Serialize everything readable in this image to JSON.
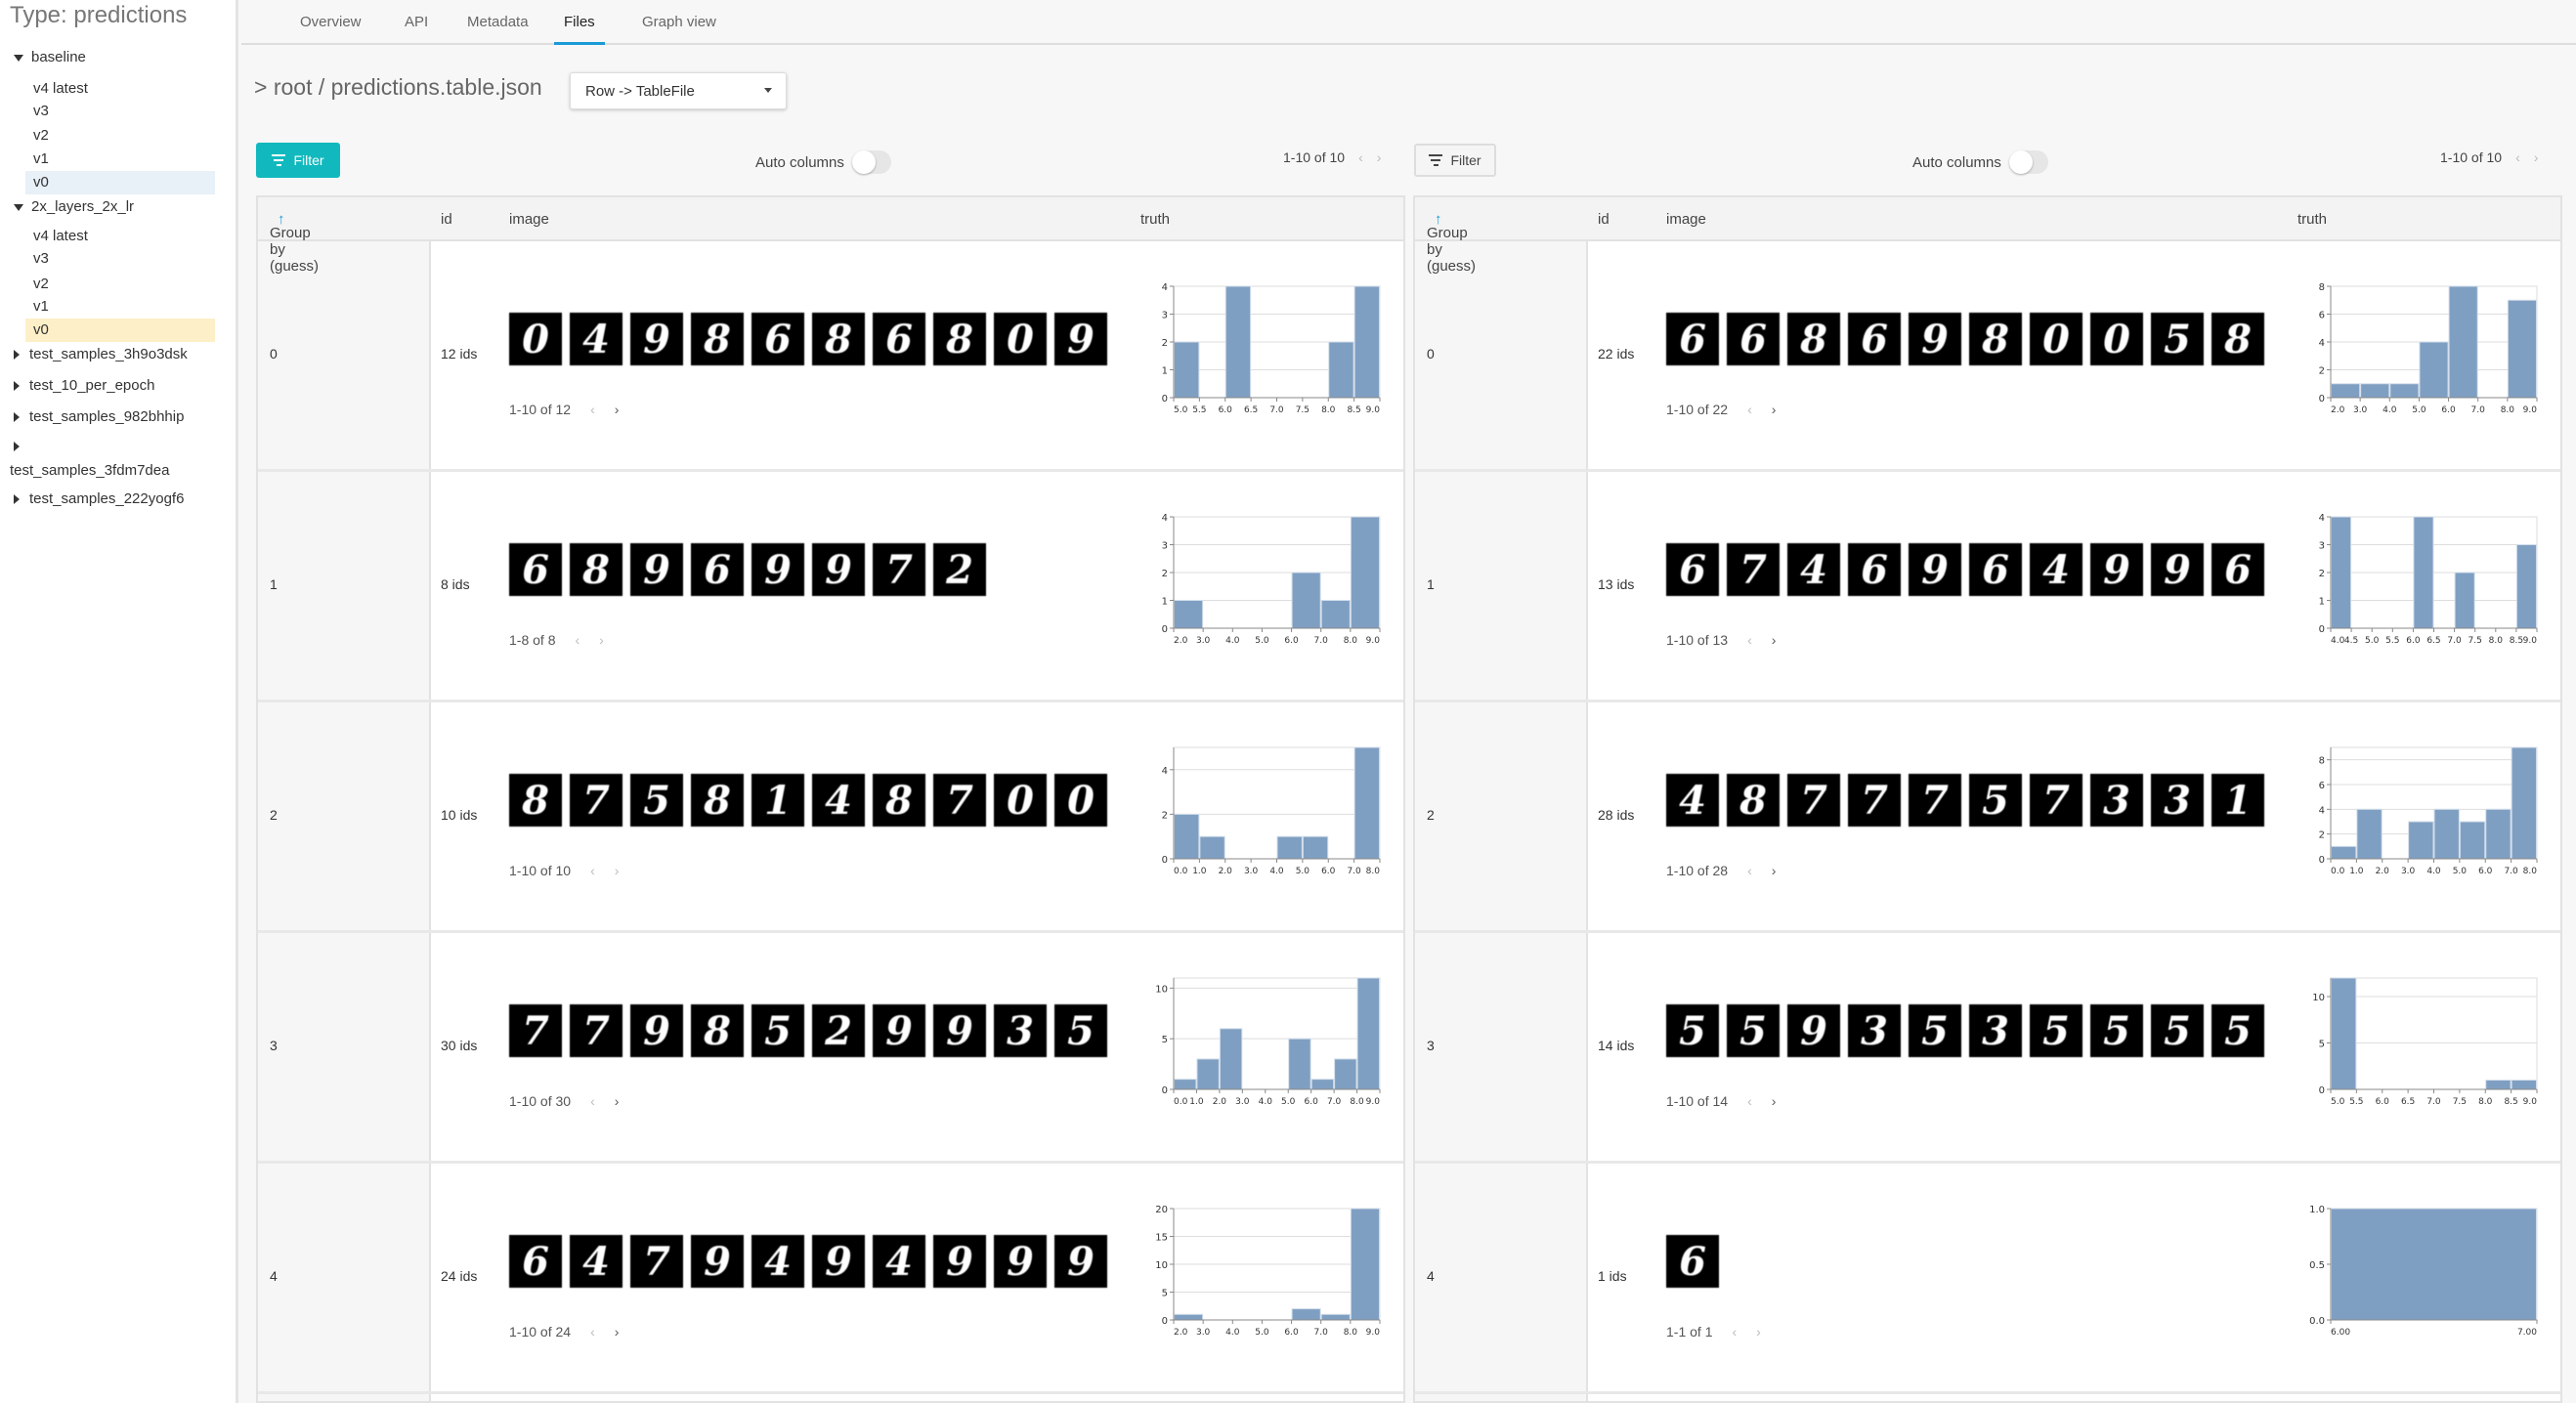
{
  "sidebar": {
    "title": "Type: predictions",
    "items": [
      {
        "label": "baseline",
        "kind": "group",
        "expanded": true
      },
      {
        "label": "v4 latest",
        "kind": "version"
      },
      {
        "label": "v3",
        "kind": "version"
      },
      {
        "label": "v2",
        "kind": "version"
      },
      {
        "label": "v1",
        "kind": "version"
      },
      {
        "label": "v0",
        "kind": "version",
        "highlight": "blue"
      },
      {
        "label": "2x_layers_2x_lr",
        "kind": "group",
        "expanded": true
      },
      {
        "label": "v4 latest",
        "kind": "version"
      },
      {
        "label": "v3",
        "kind": "version"
      },
      {
        "label": "v2",
        "kind": "version"
      },
      {
        "label": "v1",
        "kind": "version"
      },
      {
        "label": "v0",
        "kind": "version",
        "highlight": "yellow"
      },
      {
        "label": "test_samples_3h9o3dsk",
        "kind": "group"
      },
      {
        "label": "test_10_per_epoch",
        "kind": "group"
      },
      {
        "label": "test_samples_982bhhip",
        "kind": "group"
      },
      {
        "label": "",
        "kind": "group"
      },
      {
        "label": "test_samples_3fdm7dea",
        "kind": "wrapped"
      },
      {
        "label": "test_samples_222yogf6",
        "kind": "group"
      }
    ]
  },
  "tabs": [
    {
      "label": "Overview"
    },
    {
      "label": "API"
    },
    {
      "label": "Metadata"
    },
    {
      "label": "Files",
      "active": true
    },
    {
      "label": "Graph view"
    }
  ],
  "breadcrumb": "> root / predictions.table.json",
  "dropdown": {
    "selected": "Row -> TableFile"
  },
  "colors": {
    "accent": "#11b9be",
    "bar": "#7f9fc2",
    "active_tab": "#1a9bd7",
    "sort_arrow": "#1a9bd7"
  },
  "panels": [
    {
      "filter_label": "Filter",
      "auto_columns_label": "Auto columns",
      "auto_columns_on": false,
      "pager": "1-10 of 10",
      "columns": {
        "group": "Group by (guess)",
        "sort": "↑",
        "id": "id",
        "image": "image",
        "truth": "truth"
      },
      "rows": [
        {
          "group": "0",
          "ids": "12 ids",
          "pager": "1-10 of 12",
          "thumbnails": [
            "0",
            "4",
            "9",
            "8",
            "6",
            "8",
            "6",
            "8",
            "0",
            "9"
          ],
          "chart": {
            "type": "bar",
            "bins": [
              [
                5,
                5.5,
                2
              ],
              [
                6,
                6.5,
                4
              ],
              [
                8,
                8.5,
                2
              ],
              [
                8.5,
                9,
                4
              ]
            ],
            "xlim": [
              5,
              9
            ],
            "xticks": [
              "5.0",
              "5.5",
              "6.0",
              "6.5",
              "7.0",
              "7.5",
              "8.0",
              "8.5",
              "9.0"
            ],
            "xtick_vals": [
              5,
              5.5,
              6,
              6.5,
              7,
              7.5,
              8,
              8.5,
              9
            ],
            "ylim": [
              0,
              4
            ],
            "yticks": [
              0,
              1,
              2,
              3,
              4
            ]
          }
        },
        {
          "group": "1",
          "ids": "8 ids",
          "pager": "1-8 of 8",
          "thumbnails": [
            "6",
            "8",
            "9",
            "6",
            "9",
            "9",
            "7",
            "2"
          ],
          "chart": {
            "type": "bar",
            "bins": [
              [
                2,
                3,
                1
              ],
              [
                6,
                7,
                2
              ],
              [
                7,
                8,
                1
              ],
              [
                8,
                9,
                4
              ]
            ],
            "xlim": [
              2,
              9
            ],
            "xticks": [
              "2.0",
              "3.0",
              "4.0",
              "5.0",
              "6.0",
              "7.0",
              "8.0",
              "9.0"
            ],
            "xtick_vals": [
              2,
              3,
              4,
              5,
              6,
              7,
              8,
              9
            ],
            "ylim": [
              0,
              4
            ],
            "yticks": [
              0,
              1,
              2,
              3,
              4
            ]
          }
        },
        {
          "group": "2",
          "ids": "10 ids",
          "pager": "1-10 of 10",
          "thumbnails": [
            "8",
            "7",
            "5",
            "8",
            "1",
            "4",
            "8",
            "7",
            "0",
            "0"
          ],
          "chart": {
            "type": "bar",
            "bins": [
              [
                0,
                1,
                2
              ],
              [
                1,
                2,
                1
              ],
              [
                4,
                5,
                1
              ],
              [
                5,
                6,
                1
              ],
              [
                7,
                8,
                5
              ]
            ],
            "xlim": [
              0,
              8
            ],
            "xticks": [
              "0.0",
              "1.0",
              "2.0",
              "3.0",
              "4.0",
              "5.0",
              "6.0",
              "7.0",
              "8.0"
            ],
            "xtick_vals": [
              0,
              1,
              2,
              3,
              4,
              5,
              6,
              7,
              8
            ],
            "ylim": [
              0,
              5
            ],
            "yticks": [
              0,
              2,
              4
            ]
          }
        },
        {
          "group": "3",
          "ids": "30 ids",
          "pager": "1-10 of 30",
          "thumbnails": [
            "7",
            "7",
            "9",
            "8",
            "5",
            "2",
            "9",
            "9",
            "3",
            "5"
          ],
          "chart": {
            "type": "bar",
            "bins": [
              [
                0,
                1,
                1
              ],
              [
                1,
                2,
                3
              ],
              [
                2,
                3,
                6
              ],
              [
                5,
                6,
                5
              ],
              [
                6,
                7,
                1
              ],
              [
                7,
                8,
                3
              ],
              [
                8,
                9,
                11
              ]
            ],
            "xlim": [
              0,
              9
            ],
            "xticks": [
              "0.0",
              "1.0",
              "2.0",
              "3.0",
              "4.0",
              "5.0",
              "6.0",
              "7.0",
              "8.0",
              "9.0"
            ],
            "xtick_vals": [
              0,
              1,
              2,
              3,
              4,
              5,
              6,
              7,
              8,
              9
            ],
            "ylim": [
              0,
              11
            ],
            "yticks": [
              0,
              5,
              10
            ]
          }
        },
        {
          "group": "4",
          "ids": "24 ids",
          "pager": "1-10 of 24",
          "thumbnails": [
            "6",
            "4",
            "7",
            "9",
            "4",
            "9",
            "4",
            "9",
            "9",
            "9"
          ],
          "chart": {
            "type": "bar",
            "bins": [
              [
                2,
                3,
                1
              ],
              [
                6,
                7,
                2
              ],
              [
                7,
                8,
                1
              ],
              [
                8,
                9,
                20
              ]
            ],
            "xlim": [
              2,
              9
            ],
            "xticks": [
              "2.0",
              "3.0",
              "4.0",
              "5.0",
              "6.0",
              "7.0",
              "8.0",
              "9.0"
            ],
            "xtick_vals": [
              2,
              3,
              4,
              5,
              6,
              7,
              8,
              9
            ],
            "ylim": [
              0,
              20
            ],
            "yticks": [
              0,
              5,
              10,
              15,
              20
            ]
          }
        }
      ]
    },
    {
      "filter_label": "Filter",
      "auto_columns_label": "Auto columns",
      "auto_columns_on": false,
      "pager": "1-10 of 10",
      "columns": {
        "group": "Group by (guess)",
        "sort": "↑",
        "id": "id",
        "image": "image",
        "truth": "truth"
      },
      "rows": [
        {
          "group": "0",
          "ids": "22 ids",
          "pager": "1-10 of 22",
          "thumbnails": [
            "6",
            "6",
            "8",
            "6",
            "9",
            "8",
            "0",
            "0",
            "5",
            "8"
          ],
          "chart": {
            "type": "bar",
            "bins": [
              [
                2,
                3,
                1
              ],
              [
                3,
                4,
                1
              ],
              [
                4,
                5,
                1
              ],
              [
                5,
                6,
                4
              ],
              [
                6,
                7,
                8
              ],
              [
                8,
                9,
                7
              ]
            ],
            "xlim": [
              2,
              9
            ],
            "xticks": [
              "2.0",
              "3.0",
              "4.0",
              "5.0",
              "6.0",
              "7.0",
              "8.0",
              "9.0"
            ],
            "xtick_vals": [
              2,
              3,
              4,
              5,
              6,
              7,
              8,
              9
            ],
            "ylim": [
              0,
              8
            ],
            "yticks": [
              0,
              2,
              4,
              6,
              8
            ]
          }
        },
        {
          "group": "1",
          "ids": "13 ids",
          "pager": "1-10 of 13",
          "thumbnails": [
            "6",
            "7",
            "4",
            "6",
            "9",
            "6",
            "4",
            "9",
            "9",
            "6"
          ],
          "chart": {
            "type": "bar",
            "bins": [
              [
                4,
                4.5,
                4
              ],
              [
                6,
                6.5,
                4
              ],
              [
                7,
                7.5,
                2
              ],
              [
                8.5,
                9,
                3
              ]
            ],
            "xlim": [
              4,
              9
            ],
            "xticks": [
              "4.0",
              "4.5",
              "5.0",
              "5.5",
              "6.0",
              "6.5",
              "7.0",
              "7.5",
              "8.0",
              "8.5",
              "9.0"
            ],
            "xtick_vals": [
              4,
              4.5,
              5,
              5.5,
              6,
              6.5,
              7,
              7.5,
              8,
              8.5,
              9
            ],
            "ylim": [
              0,
              4
            ],
            "yticks": [
              0,
              1,
              2,
              3,
              4
            ]
          }
        },
        {
          "group": "2",
          "ids": "28 ids",
          "pager": "1-10 of 28",
          "thumbnails": [
            "4",
            "8",
            "7",
            "7",
            "7",
            "5",
            "7",
            "3",
            "3",
            "1"
          ],
          "chart": {
            "type": "bar",
            "bins": [
              [
                0,
                1,
                1
              ],
              [
                1,
                2,
                4
              ],
              [
                3,
                4,
                3
              ],
              [
                4,
                5,
                4
              ],
              [
                5,
                6,
                3
              ],
              [
                6,
                7,
                4
              ],
              [
                7,
                8,
                9
              ]
            ],
            "xlim": [
              0,
              8
            ],
            "xticks": [
              "0.0",
              "1.0",
              "2.0",
              "3.0",
              "4.0",
              "5.0",
              "6.0",
              "7.0",
              "8.0"
            ],
            "xtick_vals": [
              0,
              1,
              2,
              3,
              4,
              5,
              6,
              7,
              8
            ],
            "ylim": [
              0,
              9
            ],
            "yticks": [
              0,
              2,
              4,
              6,
              8
            ]
          }
        },
        {
          "group": "3",
          "ids": "14 ids",
          "pager": "1-10 of 14",
          "thumbnails": [
            "5",
            "5",
            "9",
            "3",
            "5",
            "3",
            "5",
            "5",
            "5",
            "5"
          ],
          "chart": {
            "type": "bar",
            "bins": [
              [
                5,
                5.5,
                12
              ],
              [
                8,
                8.5,
                1
              ],
              [
                8.5,
                9,
                1
              ]
            ],
            "xlim": [
              5,
              9
            ],
            "xticks": [
              "5.0",
              "5.5",
              "6.0",
              "6.5",
              "7.0",
              "7.5",
              "8.0",
              "8.5",
              "9.0"
            ],
            "xtick_vals": [
              5,
              5.5,
              6,
              6.5,
              7,
              7.5,
              8,
              8.5,
              9
            ],
            "ylim": [
              0,
              12
            ],
            "yticks": [
              0,
              5,
              10
            ]
          }
        },
        {
          "group": "4",
          "ids": "1 ids",
          "pager": "1-1 of 1",
          "thumbnails": [
            "6"
          ],
          "chart": {
            "type": "bar",
            "bins": [
              [
                6,
                7,
                1
              ]
            ],
            "xlim": [
              6,
              7
            ],
            "xticks": [
              "6.00",
              "7.00"
            ],
            "xtick_vals": [
              6,
              7
            ],
            "ylim": [
              0,
              1
            ],
            "yticks": [
              "0.0",
              "0.5",
              "1.0"
            ],
            "ytick_vals": [
              0,
              0.5,
              1
            ]
          }
        }
      ]
    }
  ]
}
